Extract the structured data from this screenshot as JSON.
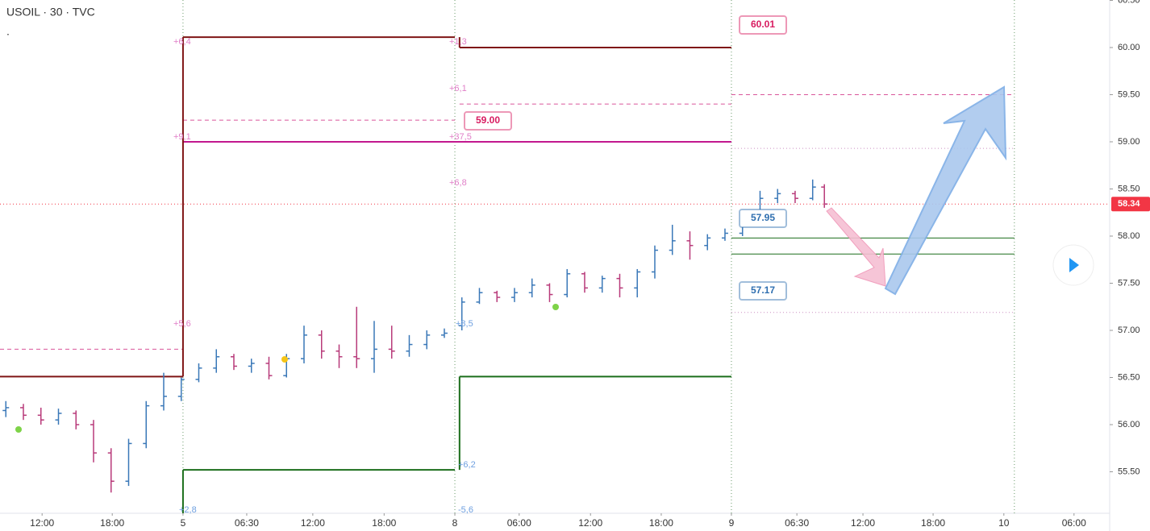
{
  "chart_data": {
    "type": "ohlc",
    "title": "USOIL · 30 · TVC",
    "subtitle": ".",
    "xlim": [
      0,
      189.8
    ],
    "ylim": [
      55.06,
      60.504
    ],
    "xticks": [
      {
        "value": 7.2,
        "label": "12:00"
      },
      {
        "value": 19.2,
        "label": "18:00"
      },
      {
        "value": 31.3,
        "label": "5"
      },
      {
        "value": 42.2,
        "label": "06:30"
      },
      {
        "value": 53.5,
        "label": "12:00"
      },
      {
        "value": 65.7,
        "label": "18:00"
      },
      {
        "value": 77.8,
        "label": "8"
      },
      {
        "value": 88.8,
        "label": "06:00"
      },
      {
        "value": 101,
        "label": "12:00"
      },
      {
        "value": 113.1,
        "label": "18:00"
      },
      {
        "value": 125.1,
        "label": "9"
      },
      {
        "value": 136.3,
        "label": "06:30"
      },
      {
        "value": 147.6,
        "label": "12:00"
      },
      {
        "value": 159.6,
        "label": "18:00"
      },
      {
        "value": 171.7,
        "label": "10"
      },
      {
        "value": 183.7,
        "label": "06:00"
      }
    ],
    "yticks": [
      {
        "value": 60.5,
        "label": "60.50"
      },
      {
        "value": 60,
        "label": "60.00"
      },
      {
        "value": 59.5,
        "label": "59.50"
      },
      {
        "value": 59,
        "label": "59.00"
      },
      {
        "value": 58.5,
        "label": "58.50"
      },
      {
        "value": 58,
        "label": "58.00"
      },
      {
        "value": 57.5,
        "label": "57.50"
      },
      {
        "value": 57,
        "label": "57.00"
      },
      {
        "value": 56.5,
        "label": "56.50"
      },
      {
        "value": 56,
        "label": "56.00"
      },
      {
        "value": 55.5,
        "label": "55.50"
      }
    ],
    "series": [
      {
        "up_color": "#3a78b8",
        "down_color": "#b83a7a",
        "x": [
          1,
          4,
          7,
          10,
          13,
          16,
          19,
          22,
          25,
          28,
          31,
          34,
          37,
          40,
          43,
          46,
          49,
          52,
          55,
          58,
          61,
          64,
          67,
          70,
          73,
          76,
          79,
          82,
          85,
          88,
          91,
          94,
          97,
          100,
          103,
          106,
          109,
          112,
          115,
          118,
          121,
          124,
          127,
          130,
          133,
          136,
          139,
          141
        ],
        "open": [
          56.15,
          56.18,
          56.1,
          56.05,
          56.12,
          56.0,
          55.7,
          55.4,
          55.8,
          56.2,
          56.3,
          56.48,
          56.6,
          56.72,
          56.62,
          56.65,
          56.52,
          56.7,
          56.95,
          56.78,
          56.72,
          56.7,
          56.8,
          56.78,
          56.85,
          56.95,
          57.05,
          57.3,
          57.4,
          57.35,
          57.4,
          57.48,
          57.38,
          57.6,
          57.45,
          57.55,
          57.45,
          57.62,
          57.85,
          57.95,
          57.9,
          57.98,
          58.03,
          58.2,
          58.4,
          58.45,
          58.4,
          58.52
        ],
        "high": [
          56.25,
          56.22,
          56.18,
          56.17,
          56.15,
          56.05,
          55.75,
          55.85,
          56.25,
          56.55,
          56.5,
          56.65,
          56.8,
          56.75,
          56.7,
          56.72,
          56.75,
          57.05,
          57.0,
          56.85,
          57.25,
          57.1,
          57.05,
          56.95,
          57.0,
          57.02,
          57.35,
          57.45,
          57.42,
          57.45,
          57.55,
          57.5,
          57.65,
          57.62,
          57.58,
          57.6,
          57.65,
          57.9,
          58.12,
          58.05,
          58.02,
          58.08,
          58.25,
          58.48,
          58.5,
          58.48,
          58.6,
          58.55
        ],
        "low": [
          56.08,
          56.05,
          56.0,
          56.0,
          55.95,
          55.6,
          55.28,
          55.35,
          55.75,
          56.15,
          56.25,
          56.45,
          56.55,
          56.58,
          56.55,
          56.48,
          56.5,
          56.65,
          56.7,
          56.6,
          56.6,
          56.55,
          56.7,
          56.72,
          56.8,
          56.92,
          57.0,
          57.28,
          57.3,
          57.3,
          57.35,
          57.3,
          57.35,
          57.4,
          57.4,
          57.35,
          57.35,
          57.55,
          57.8,
          57.75,
          57.85,
          57.95,
          58.0,
          58.15,
          58.35,
          58.35,
          58.38,
          58.3
        ],
        "close": [
          56.18,
          56.1,
          56.05,
          56.12,
          56.0,
          55.7,
          55.4,
          55.8,
          56.2,
          56.3,
          56.48,
          56.6,
          56.72,
          56.62,
          56.65,
          56.52,
          56.7,
          56.95,
          56.78,
          56.72,
          56.7,
          56.8,
          56.78,
          56.85,
          56.95,
          56.97,
          57.3,
          57.4,
          57.35,
          57.4,
          57.48,
          57.38,
          57.6,
          57.45,
          57.55,
          57.45,
          57.62,
          57.85,
          57.95,
          57.9,
          57.98,
          58.03,
          58.2,
          58.4,
          58.45,
          58.4,
          58.52,
          58.34
        ]
      }
    ],
    "last_price": {
      "value": 58.34,
      "label": "58.34",
      "color": "#f23645"
    },
    "sessions": [
      31.3,
      77.8,
      125.1,
      173.5
    ],
    "levels": [
      {
        "y": 56.51,
        "x": [
          0,
          31.3
        ],
        "color": "#7f1414",
        "style": "solid",
        "width": 2
      },
      {
        "y": 60.11,
        "x": [
          31.3,
          77.8
        ],
        "color": "#7f1414",
        "style": "solid",
        "width": 2
      },
      {
        "y": 60.0,
        "x": [
          78.6,
          125.1
        ],
        "color": "#7f1414",
        "style": "solid",
        "width": 2
      },
      {
        "y": 59.0,
        "x": [
          31.3,
          125.1
        ],
        "color": "#c2188f",
        "style": "solid",
        "width": 2
      },
      {
        "y": 56.8,
        "x": [
          0,
          31.3
        ],
        "color": "#d9559a",
        "style": "dashed",
        "width": 1
      },
      {
        "y": 59.23,
        "x": [
          31.3,
          77.8
        ],
        "color": "#d9559a",
        "style": "dashed",
        "width": 1
      },
      {
        "y": 59.4,
        "x": [
          78.6,
          125.1
        ],
        "color": "#d9559a",
        "style": "dashed",
        "width": 1
      },
      {
        "y": 59.5,
        "x": [
          125.1,
          173.5
        ],
        "color": "#d9559a",
        "style": "dashed",
        "width": 1
      },
      {
        "y": 55.52,
        "x": [
          31.3,
          77.8
        ],
        "color": "#1b6e1b",
        "style": "solid",
        "width": 2
      },
      {
        "y": 56.51,
        "x": [
          78.6,
          125.1
        ],
        "color": "#1b6e1b",
        "style": "solid",
        "width": 2
      },
      {
        "y": 57.98,
        "x": [
          125.1,
          173.5
        ],
        "color": "#1b6e1b",
        "style": "solid",
        "width": 1
      },
      {
        "y": 57.81,
        "x": [
          125.1,
          173.5
        ],
        "color": "#1b6e1b",
        "style": "solid",
        "width": 1
      },
      {
        "y": 58.93,
        "x": [
          125.1,
          173.5
        ],
        "color": "#c98bc0",
        "style": "dotted",
        "width": 1
      },
      {
        "y": 57.19,
        "x": [
          125.1,
          173.5
        ],
        "color": "#c98bc0",
        "style": "dotted",
        "width": 1
      }
    ],
    "connectors": [
      {
        "x": 31.3,
        "y": [
          56.51,
          60.11
        ],
        "color": "#7f1414"
      },
      {
        "x": 78.6,
        "y": [
          60.11,
          60.0
        ],
        "color": "#7f1414"
      },
      {
        "x": 31.3,
        "y": [
          55.06,
          55.52
        ],
        "color": "#1b6e1b"
      },
      {
        "x": 78.6,
        "y": [
          55.52,
          56.51
        ],
        "color": "#1b6e1b"
      }
    ],
    "callouts": [
      {
        "value": 60.01,
        "label": "60.01",
        "color": "#d81b60"
      },
      {
        "value": 59.0,
        "label": "59.00",
        "color": "#d81b60"
      },
      {
        "value": 57.95,
        "label": "57.95",
        "color": "#2f6fb0"
      },
      {
        "value": 57.17,
        "label": "57.17",
        "color": "#2f6fb0"
      }
    ],
    "notes": [
      "+6,4",
      "+9,1",
      "+5,6",
      "+2,8",
      "+1,3",
      "+6,1",
      "+37,5",
      "+6,8",
      "+8,5",
      "+6,2",
      "-5,6"
    ]
  }
}
